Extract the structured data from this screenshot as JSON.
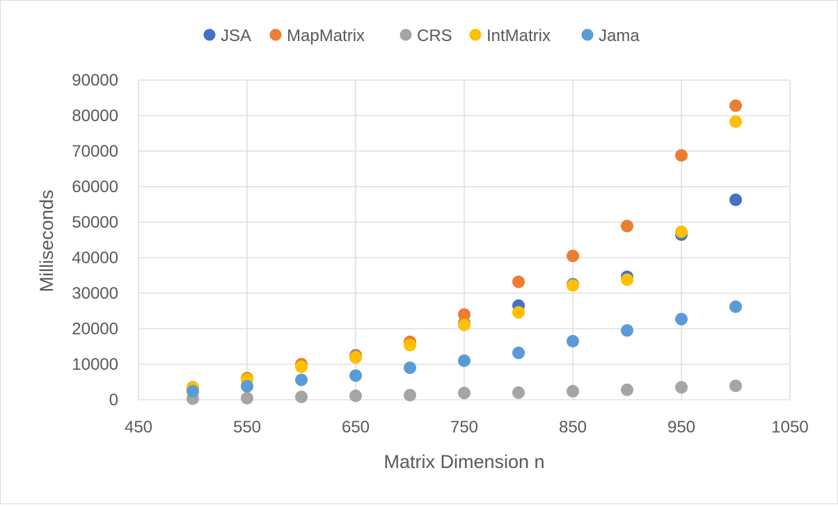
{
  "chart_data": {
    "type": "scatter",
    "title": "",
    "xlabel": "Matrix Dimension n",
    "ylabel": "Milliseconds",
    "xlim": [
      450,
      1050
    ],
    "ylim": [
      0,
      90000
    ],
    "x_ticks": [
      450,
      550,
      650,
      750,
      850,
      950,
      1050
    ],
    "y_ticks": [
      0,
      10000,
      20000,
      30000,
      40000,
      50000,
      60000,
      70000,
      80000,
      90000
    ],
    "grid": true,
    "legend_position": "top",
    "x": [
      500,
      550,
      600,
      650,
      700,
      750,
      800,
      850,
      900,
      950,
      1000
    ],
    "series": [
      {
        "name": "JSA",
        "color": "#4472C4",
        "values": [
          3300,
          5800,
          9700,
          12500,
          16000,
          21500,
          26500,
          32500,
          34600,
          46500,
          56300
        ]
      },
      {
        "name": "MapMatrix",
        "color": "#ED7D31",
        "values": [
          3500,
          6100,
          10000,
          12300,
          16300,
          24000,
          33200,
          40500,
          48900,
          68800,
          82800
        ]
      },
      {
        "name": "CRS",
        "color": "#A5A5A5",
        "values": [
          300,
          450,
          800,
          1100,
          1300,
          1900,
          2000,
          2400,
          2800,
          3500,
          3900
        ]
      },
      {
        "name": "IntMatrix",
        "color": "#FFC000",
        "values": [
          3400,
          5700,
          9300,
          11900,
          15400,
          21100,
          24600,
          32200,
          33800,
          47300,
          78300
        ]
      },
      {
        "name": "Jama",
        "color": "#5B9BD5",
        "values": [
          2400,
          3800,
          5600,
          6800,
          9000,
          11000,
          13200,
          16500,
          19500,
          22700,
          26200
        ]
      }
    ]
  }
}
